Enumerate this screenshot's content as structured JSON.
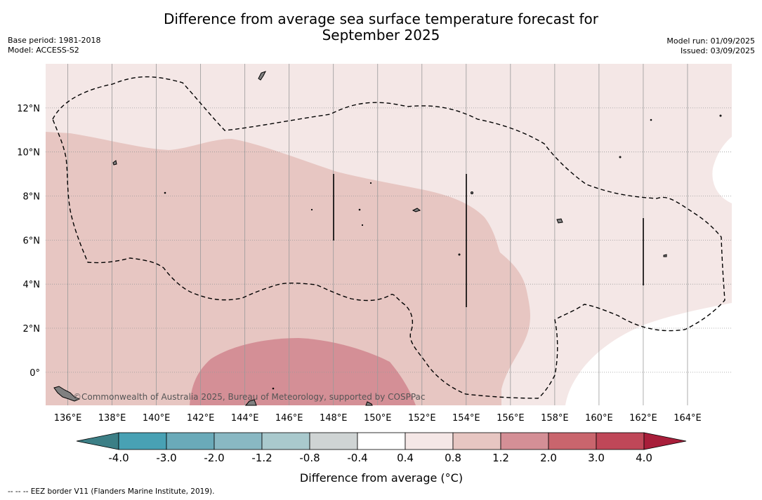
{
  "title_line1": "Difference from average sea surface temperature forecast for",
  "title_line2": "September 2025",
  "base_period": "Base period: 1981-2018",
  "model": "Model: ACCESS-S2",
  "model_run": "Model run: 01/09/2025",
  "issued": "Issued: 03/09/2025",
  "copyright": "©Commonwealth of Australia 2025, Bureau of Meteorology, supported by COSPPac",
  "colorbar_label": "Difference from average (°C)",
  "footer_note": "--  --  -- EEZ border V11 (Flanders Marine Institute, 2019).",
  "map_data": {
    "lon_range": [
      135,
      166
    ],
    "lat_range": [
      -1.5,
      14
    ],
    "lon_ticks": [
      136,
      138,
      140,
      142,
      144,
      146,
      148,
      150,
      152,
      154,
      156,
      158,
      160,
      162,
      164
    ],
    "lon_tick_labels": [
      "136°E",
      "138°E",
      "140°E",
      "142°E",
      "144°E",
      "146°E",
      "148°E",
      "150°E",
      "152°E",
      "154°E",
      "156°E",
      "158°E",
      "160°E",
      "162°E",
      "164°E"
    ],
    "lat_ticks": [
      0,
      2,
      4,
      6,
      8,
      10,
      12
    ],
    "lat_tick_labels": [
      "0°",
      "2°N",
      "4°N",
      "6°N",
      "8°N",
      "10°N",
      "12°N"
    ],
    "grid": true
  },
  "colorbar": {
    "ticks": [
      "-4.0",
      "-3.0",
      "-2.0",
      "-1.2",
      "-0.8",
      "-0.4",
      "0.4",
      "0.8",
      "1.2",
      "2.0",
      "3.0",
      "4.0"
    ],
    "colors": [
      "#48a1b4",
      "#6aaab9",
      "#89b8c3",
      "#a9c9cd",
      "#cfd4d4",
      "#ffffff",
      "#f5e7e6",
      "#e7c6c2",
      "#d48f96",
      "#c9656d",
      "#bf4758"
    ],
    "under_color": "#3c7f86",
    "over_color": "#a81e3a"
  },
  "colors": {
    "land": "#808080",
    "eez_line": "#000000",
    "gridline": "#999999"
  }
}
